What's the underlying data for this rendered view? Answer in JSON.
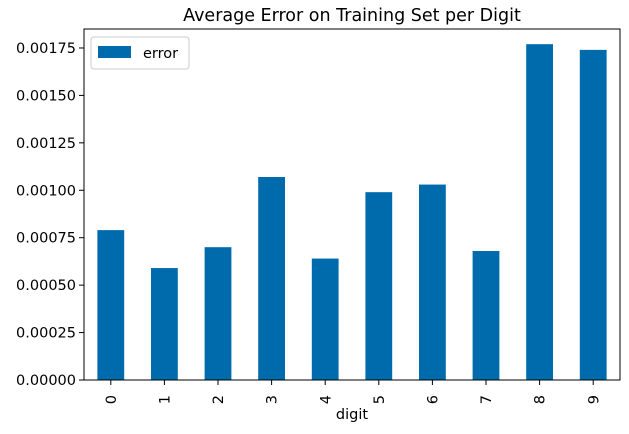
{
  "chart_data": {
    "type": "bar",
    "title": "Average Error on Training Set per Digit",
    "xlabel": "digit",
    "ylabel": "",
    "categories": [
      "0",
      "1",
      "2",
      "3",
      "4",
      "5",
      "6",
      "7",
      "8",
      "9"
    ],
    "series": [
      {
        "name": "error",
        "values": [
          0.00079,
          0.00059,
          0.0007,
          0.00107,
          0.00064,
          0.00099,
          0.00103,
          0.00068,
          0.00177,
          0.00174
        ]
      }
    ],
    "ylim": [
      0,
      0.00185
    ],
    "yticks": [
      "0.00000",
      "0.00025",
      "0.00050",
      "0.00075",
      "0.00100",
      "0.00125",
      "0.00150",
      "0.00175"
    ],
    "ytick_values": [
      0,
      0.00025,
      0.0005,
      0.00075,
      0.001,
      0.00125,
      0.0015,
      0.00175
    ],
    "grid": false,
    "legend_position": "top-left",
    "bar_color": "#006BAC"
  }
}
